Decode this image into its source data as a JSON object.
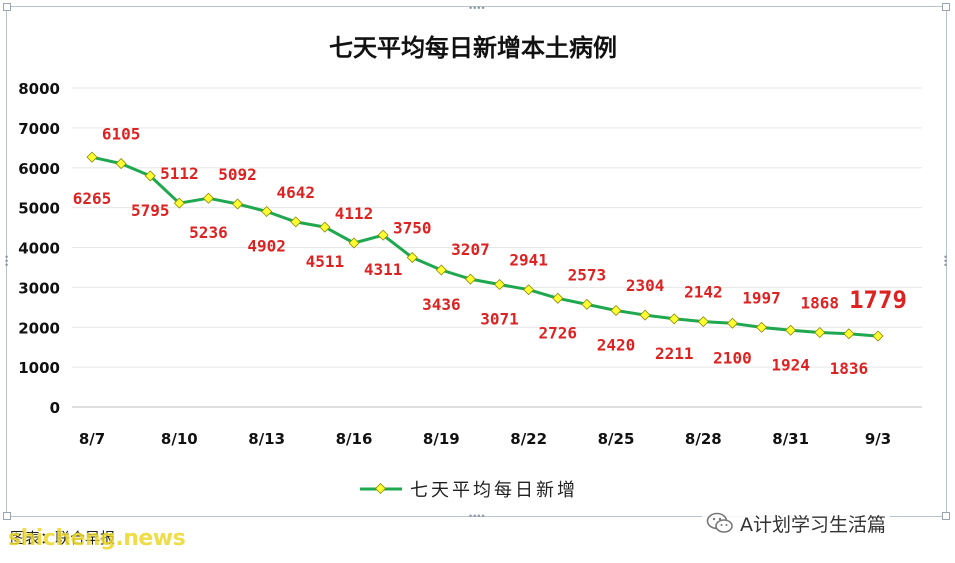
{
  "chart_data": {
    "type": "line",
    "title": "七天平均每日新增本土病例",
    "xlabel": "",
    "ylabel": "",
    "ylim": [
      0,
      8000
    ],
    "yticks": [
      0,
      1000,
      2000,
      3000,
      4000,
      5000,
      6000,
      7000,
      8000
    ],
    "xtick_labels": [
      "8/7",
      "8/10",
      "8/13",
      "8/16",
      "8/19",
      "8/22",
      "8/25",
      "8/28",
      "8/31",
      "9/3"
    ],
    "grid": "horizontal",
    "legend_position": "bottom",
    "categories": [
      "8/7",
      "8/8",
      "8/9",
      "8/10",
      "8/11",
      "8/12",
      "8/13",
      "8/14",
      "8/15",
      "8/16",
      "8/17",
      "8/18",
      "8/19",
      "8/20",
      "8/21",
      "8/22",
      "8/23",
      "8/24",
      "8/25",
      "8/26",
      "8/27",
      "8/28",
      "8/29",
      "8/30",
      "8/31",
      "9/1",
      "9/2",
      "9/3"
    ],
    "series": [
      {
        "name": "七天平均每日新增",
        "color": "#1fa84f",
        "marker_color": "#ffff33",
        "values": [
          6265,
          6105,
          5795,
          5112,
          5236,
          5092,
          4902,
          4642,
          4511,
          4112,
          4311,
          3750,
          3436,
          3207,
          3071,
          2941,
          2726,
          2573,
          2420,
          2304,
          2211,
          2142,
          2100,
          1997,
          1924,
          1868,
          1836,
          1779
        ]
      }
    ],
    "label_color": "#dd2222"
  },
  "caption": "图表：联合早报",
  "watermark_left": "shicheng.news",
  "watermark_right": "A计划学习生活篇",
  "icons": {
    "watermark": "wechat-icon"
  }
}
